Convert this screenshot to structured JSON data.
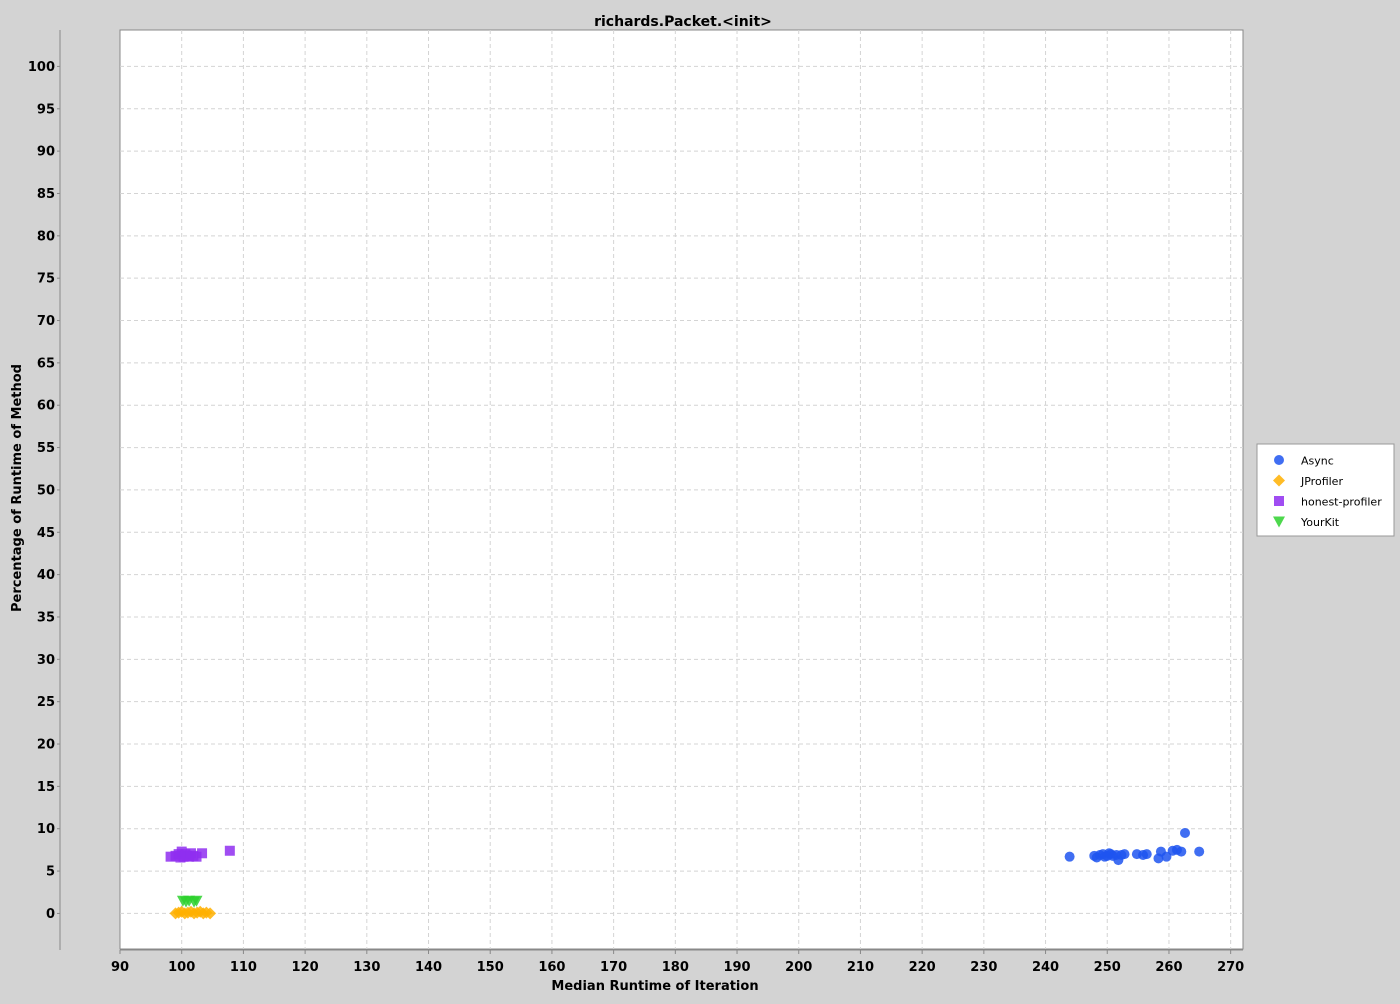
{
  "chart_data": {
    "type": "scatter",
    "title": "richards.Packet.<init>",
    "xlabel": "Median Runtime of Iteration",
    "ylabel": "Percentage of Runtime of Method",
    "xlim": [
      90,
      272
    ],
    "ylim": [
      -4.2,
      104.3
    ],
    "xticks": [
      90,
      100,
      110,
      120,
      130,
      140,
      150,
      160,
      170,
      180,
      190,
      200,
      210,
      220,
      230,
      240,
      250,
      260,
      270
    ],
    "yticks": [
      0,
      5,
      10,
      15,
      20,
      25,
      30,
      35,
      40,
      45,
      50,
      55,
      60,
      65,
      70,
      75,
      80,
      85,
      90,
      95,
      100
    ],
    "grid": true,
    "legend_position": "right",
    "series": [
      {
        "name": "Async",
        "marker": "circle",
        "color": "#1f55f0",
        "points": [
          [
            243.9,
            6.7
          ],
          [
            247.9,
            6.8
          ],
          [
            248.3,
            6.6
          ],
          [
            248.8,
            6.9
          ],
          [
            249.3,
            7.0
          ],
          [
            249.6,
            6.7
          ],
          [
            250.0,
            6.8
          ],
          [
            250.3,
            7.1
          ],
          [
            250.6,
            7.0
          ],
          [
            250.9,
            6.8
          ],
          [
            251.5,
            6.9
          ],
          [
            251.8,
            6.3
          ],
          [
            252.3,
            6.9
          ],
          [
            252.8,
            7.0
          ],
          [
            254.8,
            7.0
          ],
          [
            255.8,
            6.9
          ],
          [
            256.4,
            7.0
          ],
          [
            258.3,
            6.5
          ],
          [
            258.7,
            7.3
          ],
          [
            259.6,
            6.7
          ],
          [
            260.6,
            7.4
          ],
          [
            261.3,
            7.5
          ],
          [
            262.0,
            7.3
          ],
          [
            262.6,
            9.5
          ],
          [
            264.9,
            7.3
          ]
        ]
      },
      {
        "name": "JProfiler",
        "marker": "diamond",
        "color": "#ffb000",
        "points": [
          [
            99.0,
            0.0
          ],
          [
            99.5,
            0.1
          ],
          [
            100.0,
            0.2
          ],
          [
            100.5,
            0.0
          ],
          [
            101.0,
            0.1
          ],
          [
            101.5,
            0.2
          ],
          [
            102.0,
            0.0
          ],
          [
            102.5,
            0.1
          ],
          [
            103.0,
            0.2
          ],
          [
            103.5,
            0.0
          ],
          [
            104.0,
            0.1
          ],
          [
            104.6,
            0.0
          ]
        ]
      },
      {
        "name": "honest-profiler",
        "marker": "square",
        "color": "#8f2ef0",
        "points": [
          [
            98.2,
            6.7
          ],
          [
            99.0,
            6.8
          ],
          [
            99.5,
            7.0
          ],
          [
            99.8,
            6.6
          ],
          [
            100.0,
            7.3
          ],
          [
            100.3,
            6.7
          ],
          [
            100.6,
            7.0
          ],
          [
            100.9,
            6.8
          ],
          [
            101.2,
            6.7
          ],
          [
            101.5,
            7.1
          ],
          [
            101.9,
            6.8
          ],
          [
            102.4,
            6.7
          ],
          [
            103.3,
            7.1
          ],
          [
            107.8,
            7.4
          ]
        ]
      },
      {
        "name": "YourKit",
        "marker": "triangle-down",
        "color": "#2ed12e",
        "points": [
          [
            100.2,
            1.5
          ],
          [
            100.7,
            1.4
          ],
          [
            101.2,
            1.5
          ],
          [
            102.0,
            1.4
          ],
          [
            102.4,
            1.5
          ]
        ]
      }
    ]
  }
}
